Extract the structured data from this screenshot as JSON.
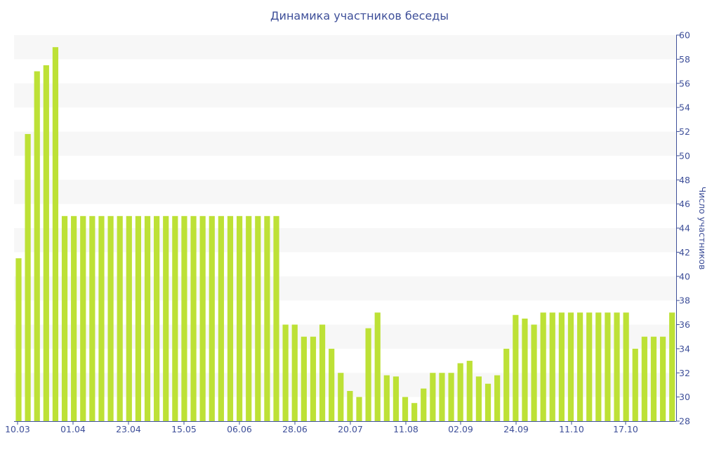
{
  "chart_data": {
    "type": "bar",
    "title": "Динамика участников беседы",
    "ylabel": "Число участников",
    "xlabel": "",
    "ylim": [
      28,
      60
    ],
    "yticks": [
      28,
      30,
      32,
      34,
      36,
      38,
      40,
      42,
      44,
      46,
      48,
      50,
      52,
      54,
      56,
      58,
      60
    ],
    "x_tick_labels": [
      "10.03",
      "01.04",
      "23.04",
      "15.05",
      "06.06",
      "28.06",
      "20.07",
      "11.08",
      "02.09",
      "24.09",
      "11.10",
      "17.10"
    ],
    "y_axis_side": "right",
    "grid": "horizontal bands",
    "values": [
      41.5,
      51.8,
      57.0,
      57.5,
      59.0,
      45,
      45,
      45,
      45,
      45,
      45,
      45,
      45,
      45,
      45,
      45,
      45,
      45,
      45,
      45,
      45,
      45,
      45,
      45,
      45,
      45,
      45,
      45,
      45,
      36,
      36,
      35,
      35,
      36,
      34,
      32,
      30.5,
      30,
      35.7,
      37,
      31.8,
      31.7,
      30,
      29.5,
      30.7,
      32,
      32,
      32,
      32.8,
      33,
      31.7,
      31.1,
      31.8,
      34,
      36.8,
      36.5,
      36,
      37,
      37,
      37,
      37,
      37,
      37,
      37,
      37,
      37,
      37,
      34,
      35,
      35,
      35,
      37
    ]
  },
  "colors": {
    "bar": "#bde136",
    "band": "#f7f7f7",
    "text": "#3e4f99",
    "axis": "#3e4f99"
  }
}
